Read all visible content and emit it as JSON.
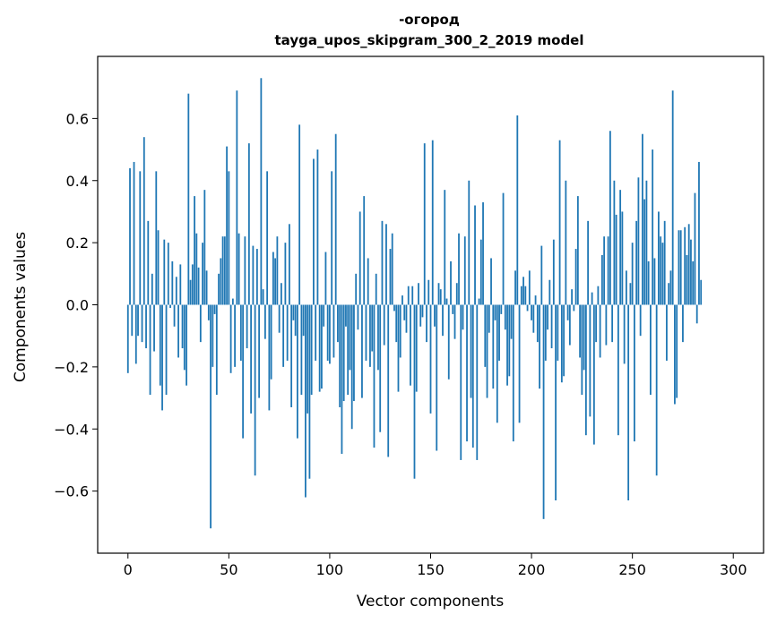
{
  "chart_data": {
    "type": "bar",
    "title": "-огород",
    "subtitle": "tayga_upos_skipgram_300_2_2019 model",
    "xlabel": "Vector components",
    "ylabel": "Components values",
    "xlim": [
      -15,
      315
    ],
    "ylim": [
      -0.8,
      0.8
    ],
    "xticks": [
      0,
      50,
      100,
      150,
      200,
      250,
      300
    ],
    "xtick_labels": [
      "0",
      "50",
      "100",
      "150",
      "200",
      "250",
      "300"
    ],
    "yticks": [
      -0.6,
      -0.4,
      -0.2,
      0.0,
      0.2,
      0.4,
      0.6
    ],
    "ytick_labels": [
      "−0.6",
      "−0.4",
      "−0.2",
      "0.0",
      "0.2",
      "0.4",
      "0.6"
    ],
    "bar_color": "#1f77b4",
    "values": [
      -0.22,
      0.44,
      -0.1,
      0.46,
      -0.19,
      -0.1,
      0.43,
      -0.12,
      0.54,
      -0.14,
      0.27,
      -0.29,
      0.1,
      -0.15,
      0.43,
      0.24,
      -0.26,
      -0.34,
      0.21,
      -0.29,
      0.2,
      -0.01,
      0.14,
      -0.07,
      0.09,
      -0.17,
      0.13,
      -0.14,
      -0.21,
      -0.26,
      0.68,
      0.08,
      0.13,
      0.35,
      0.23,
      0.12,
      -0.12,
      0.2,
      0.37,
      0.11,
      -0.05,
      -0.72,
      -0.2,
      -0.03,
      -0.29,
      0.1,
      0.15,
      0.22,
      0.22,
      0.51,
      0.43,
      -0.22,
      0.02,
      -0.2,
      0.69,
      0.23,
      -0.18,
      -0.43,
      0.22,
      -0.14,
      0.52,
      -0.35,
      0.19,
      -0.55,
      0.18,
      -0.3,
      0.73,
      0.05,
      -0.11,
      0.43,
      -0.34,
      -0.24,
      0.17,
      0.15,
      0.22,
      -0.09,
      0.07,
      -0.2,
      0.2,
      -0.18,
      0.26,
      -0.33,
      -0.05,
      -0.1,
      -0.43,
      0.58,
      -0.29,
      -0.1,
      -0.62,
      -0.35,
      -0.56,
      -0.29,
      0.47,
      -0.18,
      0.5,
      -0.28,
      -0.27,
      -0.07,
      0.17,
      -0.18,
      -0.19,
      0.43,
      -0.17,
      0.55,
      -0.12,
      -0.33,
      -0.48,
      -0.31,
      -0.07,
      -0.29,
      -0.21,
      -0.4,
      -0.31,
      0.1,
      -0.08,
      0.3,
      -0.3,
      0.35,
      -0.18,
      0.15,
      -0.2,
      -0.15,
      -0.46,
      0.1,
      -0.21,
      -0.41,
      0.27,
      -0.13,
      0.26,
      -0.49,
      0.18,
      0.23,
      -0.02,
      -0.12,
      -0.28,
      -0.17,
      0.03,
      -0.05,
      -0.09,
      0.06,
      -0.26,
      0.06,
      -0.56,
      -0.28,
      0.07,
      -0.07,
      -0.04,
      0.52,
      -0.12,
      0.08,
      -0.35,
      0.53,
      -0.07,
      -0.47,
      0.07,
      0.05,
      -0.1,
      0.37,
      0.02,
      -0.24,
      0.14,
      -0.03,
      -0.11,
      0.07,
      0.23,
      -0.5,
      -0.08,
      0.22,
      -0.44,
      0.4,
      -0.3,
      -0.46,
      0.32,
      -0.5,
      0.02,
      0.21,
      0.33,
      -0.2,
      -0.3,
      -0.09,
      0.15,
      -0.27,
      -0.05,
      -0.38,
      -0.18,
      -0.03,
      0.36,
      -0.08,
      -0.26,
      -0.23,
      -0.11,
      -0.44,
      0.11,
      0.61,
      -0.38,
      0.06,
      0.09,
      0.06,
      -0.02,
      0.11,
      -0.05,
      -0.09,
      0.03,
      -0.12,
      -0.27,
      0.19,
      -0.69,
      -0.18,
      -0.08,
      0.08,
      -0.14,
      0.21,
      -0.63,
      -0.18,
      0.53,
      -0.25,
      -0.23,
      0.4,
      -0.05,
      -0.13,
      0.05,
      -0.02,
      0.18,
      0.35,
      -0.17,
      -0.29,
      -0.21,
      -0.42,
      0.27,
      -0.36,
      0.04,
      -0.45,
      -0.12,
      0.06,
      -0.17,
      0.16,
      0.22,
      -0.13,
      0.22,
      0.56,
      -0.12,
      0.4,
      0.29,
      -0.42,
      0.37,
      0.3,
      -0.19,
      0.11,
      -0.63,
      0.07,
      0.2,
      -0.44,
      0.27,
      0.41,
      -0.1,
      0.55,
      0.34,
      0.4,
      0.14,
      -0.29,
      0.5,
      0.15,
      -0.55,
      0.3,
      0.22,
      0.2,
      0.27,
      -0.18,
      0.07,
      0.11,
      0.69,
      -0.32,
      -0.3,
      0.24,
      0.24,
      -0.12,
      0.25,
      0.16,
      0.26,
      0.21,
      0.14,
      0.36,
      -0.06,
      0.46,
      0.08
    ]
  }
}
